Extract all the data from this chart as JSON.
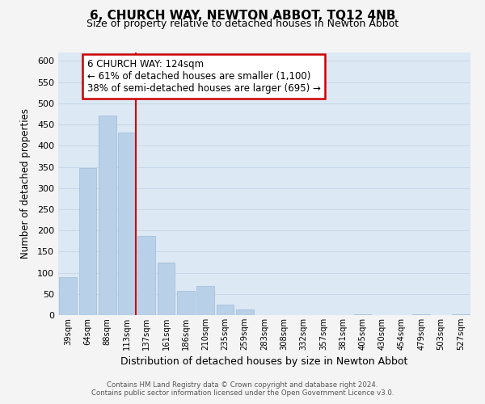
{
  "title": "6, CHURCH WAY, NEWTON ABBOT, TQ12 4NB",
  "subtitle": "Size of property relative to detached houses in Newton Abbot",
  "xlabel": "Distribution of detached houses by size in Newton Abbot",
  "ylabel": "Number of detached properties",
  "bar_labels": [
    "39sqm",
    "64sqm",
    "88sqm",
    "113sqm",
    "137sqm",
    "161sqm",
    "186sqm",
    "210sqm",
    "235sqm",
    "259sqm",
    "283sqm",
    "308sqm",
    "332sqm",
    "357sqm",
    "381sqm",
    "405sqm",
    "430sqm",
    "454sqm",
    "479sqm",
    "503sqm",
    "527sqm"
  ],
  "bar_values": [
    90,
    348,
    472,
    432,
    187,
    124,
    57,
    68,
    25,
    13,
    0,
    0,
    0,
    0,
    0,
    2,
    0,
    0,
    2,
    0,
    2
  ],
  "bar_color": "#b8d0e8",
  "bar_edge_color": "#a0bcd8",
  "ylim": [
    0,
    620
  ],
  "yticks": [
    0,
    50,
    100,
    150,
    200,
    250,
    300,
    350,
    400,
    450,
    500,
    550,
    600
  ],
  "vline_color": "#cc0000",
  "annotation_title": "6 CHURCH WAY: 124sqm",
  "annotation_line1": "← 61% of detached houses are smaller (1,100)",
  "annotation_line2": "38% of semi-detached houses are larger (695) →",
  "annotation_box_color": "#ffffff",
  "annotation_box_edge": "#cc0000",
  "grid_color": "#c8d8e8",
  "background_color": "#dce8f4",
  "footer_line1": "Contains HM Land Registry data © Crown copyright and database right 2024.",
  "footer_line2": "Contains public sector information licensed under the Open Government Licence v3.0."
}
